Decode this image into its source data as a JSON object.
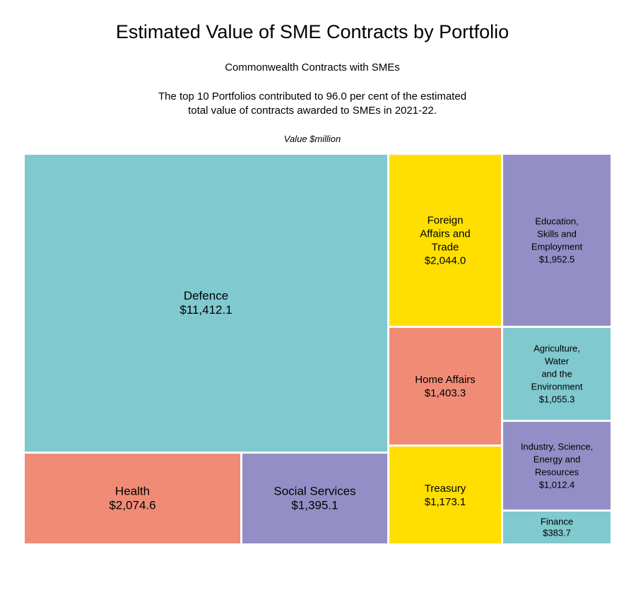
{
  "chart_data": {
    "type": "treemap",
    "title": "Estimated Value of SME Contracts by Portfolio",
    "subtitle": "Commonwealth Contracts with SMEs",
    "note": [
      "The top 10 Portfolios contributed to 96.0 per cent of the estimated",
      "total value of contracts awarded to SMEs in 2021-22."
    ],
    "unit_label": "Value $million",
    "items": [
      {
        "name": "Defence",
        "label_lines": [
          "Defence"
        ],
        "value_label": "$11,412.1",
        "value": 11412.1,
        "color": "#80C9CE"
      },
      {
        "name": "Health",
        "label_lines": [
          "Health"
        ],
        "value_label": "$2,074.6",
        "value": 2074.6,
        "color": "#F08C76"
      },
      {
        "name": "Social Services",
        "label_lines": [
          "Social Services"
        ],
        "value_label": "$1,395.1",
        "value": 1395.1,
        "color": "#948EC6"
      },
      {
        "name": "Foreign Affairs and Trade",
        "label_lines": [
          "Foreign",
          "Affairs and",
          "Trade"
        ],
        "value_label": "$2,044.0",
        "value": 2044.0,
        "color": "#FFDF00"
      },
      {
        "name": "Home Affairs",
        "label_lines": [
          "Home Affairs"
        ],
        "value_label": "$1,403.3",
        "value": 1403.3,
        "color": "#F08C76"
      },
      {
        "name": "Treasury",
        "label_lines": [
          "Treasury"
        ],
        "value_label": "$1,173.1",
        "value": 1173.1,
        "color": "#FFDF00"
      },
      {
        "name": "Education, Skills and Employment",
        "label_lines": [
          "Education,",
          "Skills and",
          "Employment"
        ],
        "value_label": "$1,952.5",
        "value": 1952.5,
        "color": "#948EC6"
      },
      {
        "name": "Agriculture, Water and the Environment",
        "label_lines": [
          "Agriculture,",
          "Water",
          "and the",
          "Environment"
        ],
        "value_label": "$1,055.3",
        "value": 1055.3,
        "color": "#80C9CE"
      },
      {
        "name": "Industry, Science, Energy and Resources",
        "label_lines": [
          "Industry, Science,",
          "Energy and",
          "Resources"
        ],
        "value_label": "$1,012.4",
        "value": 1012.4,
        "color": "#948EC6"
      },
      {
        "name": "Finance",
        "label_lines": [
          "Finance"
        ],
        "value_label": "$383.7",
        "value": 383.7,
        "color": "#80C9CE"
      }
    ]
  }
}
